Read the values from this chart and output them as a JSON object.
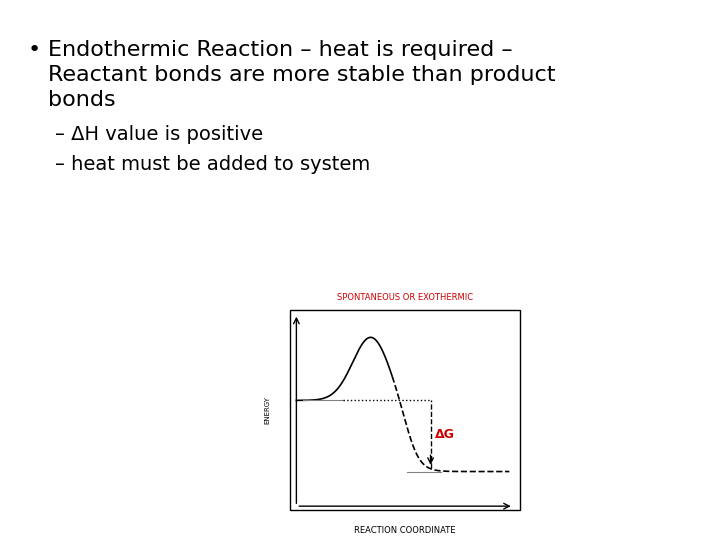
{
  "background_color": "#ffffff",
  "bullet_text_line1": "Endothermic Reaction – heat is required –",
  "bullet_text_line2": "Reactant bonds are more stable than product",
  "bullet_text_line3": "bonds",
  "sub1": "– ΔH value is positive",
  "sub2": "– heat must be added to system",
  "chart_title": "SPONTANEOUS OR EXOTHERMIC",
  "chart_title_color": "#cc0000",
  "ylabel": "ENERGY",
  "xlabel": "REACTION COORDINATE",
  "delta_label": "ΔG",
  "delta_color": "#cc0000",
  "bullet_fontsize": 16,
  "sub_fontsize": 14,
  "chart_title_fontsize": 6,
  "ylabel_fontsize": 5,
  "xlabel_fontsize": 6
}
